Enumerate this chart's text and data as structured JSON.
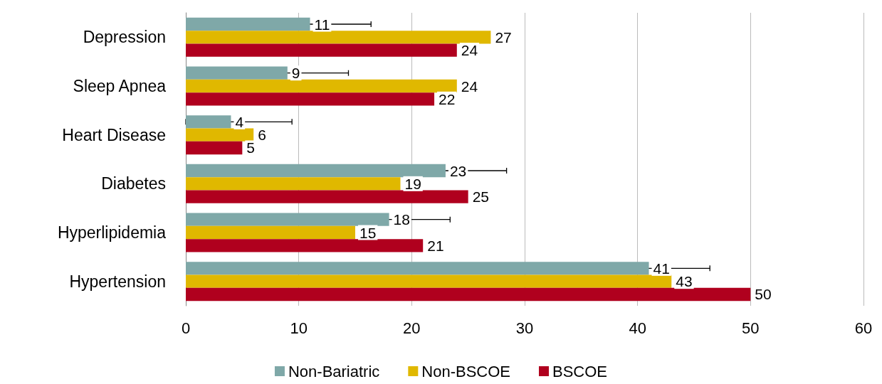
{
  "chart_data": {
    "type": "bar",
    "orientation": "horizontal",
    "categories": [
      "Depression",
      "Sleep Apnea",
      "Heart Disease",
      "Diabetes",
      "Hyperlipidemia",
      "Hypertension"
    ],
    "series": [
      {
        "name": "Non-Bariatric",
        "color": "#7fa8a8",
        "values": [
          11,
          9,
          4,
          23,
          18,
          41
        ],
        "errors": [
          5.4,
          5.4,
          [
            0,
            9.4
          ],
          5.4,
          5.4,
          5.4
        ]
      },
      {
        "name": "Non-BSCOE",
        "color": "#e0b800",
        "values": [
          27,
          24,
          6,
          19,
          15,
          43
        ]
      },
      {
        "name": "BSCOE",
        "color": "#b0001e",
        "values": [
          24,
          22,
          5,
          25,
          21,
          50
        ]
      }
    ],
    "xlim": [
      0,
      60
    ],
    "xticks": [
      0,
      10,
      20,
      30,
      40,
      50,
      60
    ],
    "grid": "x",
    "legend": "bottom",
    "data_labels": true
  }
}
